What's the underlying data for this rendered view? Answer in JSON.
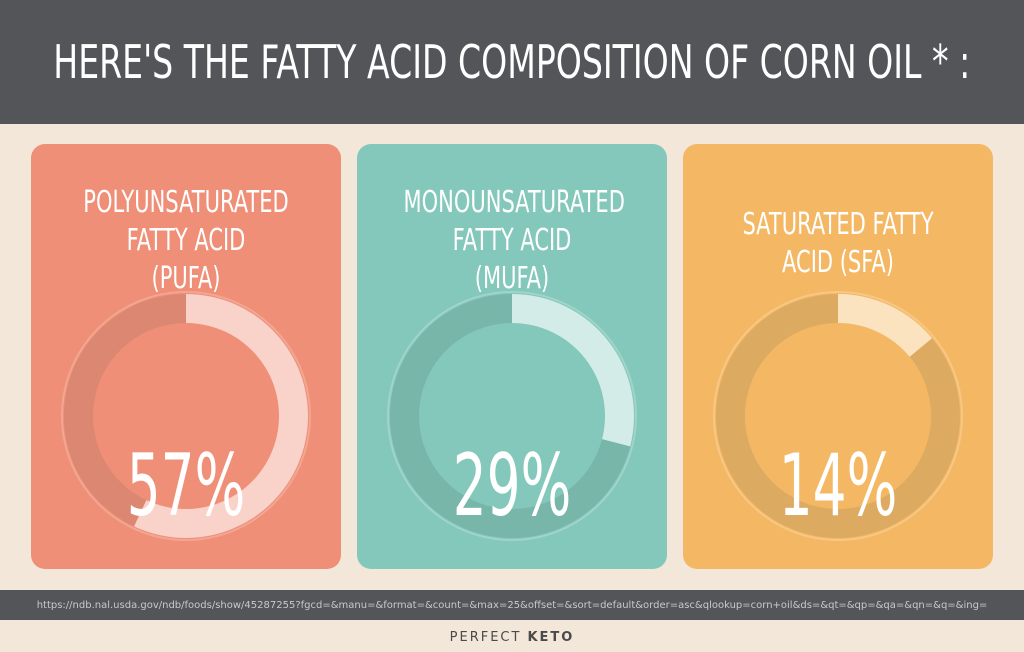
{
  "header": {
    "title": "HERE'S THE FATTY ACID COMPOSITION OF CORN OIL * :"
  },
  "chart_data": [
    {
      "type": "pie",
      "title": "POLYUNSATURATED FATTY ACID (PUFA)",
      "value_label": "57%",
      "values": [
        57,
        43
      ],
      "colors": {
        "card": "#ef8f78",
        "arc": "#f9d2c9",
        "track": "#dc8771",
        "inner": "#ef8f78"
      }
    },
    {
      "type": "pie",
      "title": "MONOUNSATURATED FATTY ACID (MUFA)",
      "value_label": "29%",
      "values": [
        29,
        71
      ],
      "colors": {
        "card": "#84c8bb",
        "arc": "#d3ece7",
        "track": "#77b6a9",
        "inner": "#84c8bb"
      }
    },
    {
      "type": "pie",
      "title": "SATURATED FATTY ACID (SFA)",
      "value_label": "14%",
      "values": [
        14,
        86
      ],
      "colors": {
        "card": "#f4b865",
        "arc": "#fbe3c0",
        "track": "#ddaa62",
        "inner": "#f4b865"
      }
    }
  ],
  "source": {
    "url": "https://ndb.nal.usda.gov/ndb/foods/show/45287255?fgcd=&manu=&format=&count=&max=25&offset=&sort=default&order=asc&qlookup=corn+oil&ds=&qt=&qp=&qa=&qn=&q=&ing="
  },
  "brand": {
    "name_part1": "PERFECT",
    "name_part2": "KETO"
  }
}
